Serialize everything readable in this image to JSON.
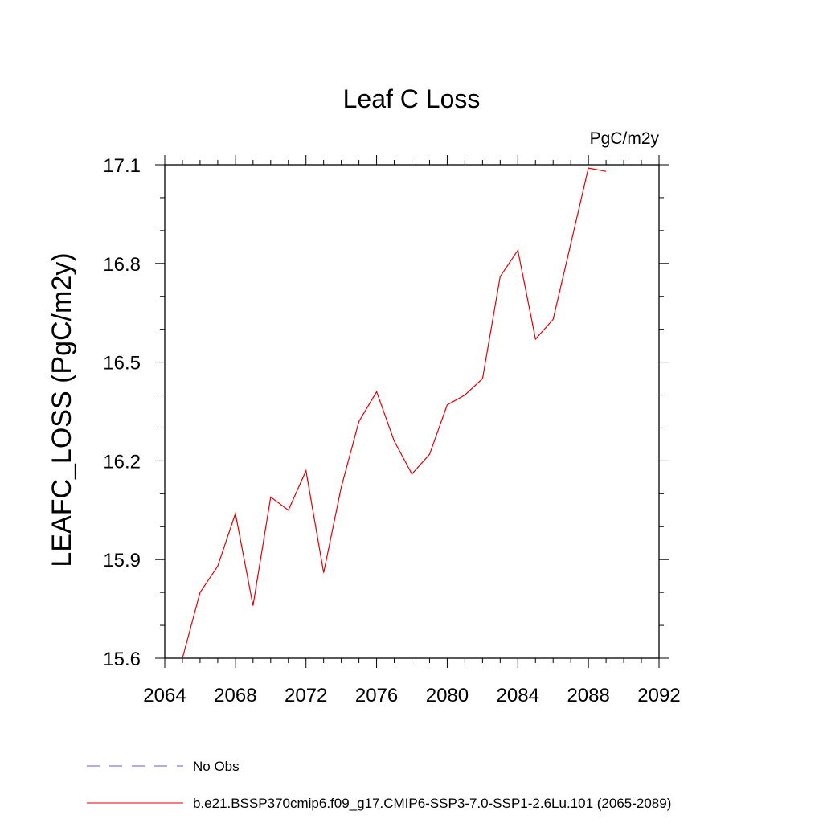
{
  "chart_data": {
    "type": "line",
    "title": "Leaf C Loss",
    "units_label": "PgC/m2y",
    "xlabel": "",
    "ylabel": "LEAFC_LOSS  (PgC/m2y)",
    "xlim": [
      2064,
      2092
    ],
    "ylim": [
      15.6,
      17.1
    ],
    "x_ticks": [
      2064,
      2068,
      2072,
      2076,
      2080,
      2084,
      2088,
      2092
    ],
    "x_tick_labels": [
      "2064",
      "2068",
      "2072",
      "2076",
      "2080",
      "2084",
      "2088",
      "2092"
    ],
    "y_ticks": [
      15.6,
      15.9,
      16.2,
      16.5,
      16.8,
      17.1
    ],
    "y_tick_labels": [
      "15.6",
      "15.9",
      "16.2",
      "16.5",
      "16.8",
      "17.1"
    ],
    "grid": false,
    "legend_position": "bottom",
    "series": [
      {
        "name": "No Obs",
        "color": "#6a5acd",
        "dash": "dashed",
        "x": [],
        "y": []
      },
      {
        "name": "b.e21.BSSP370cmip6.f09_g17.CMIP6-SSP3-7.0-SSP1-2.6Lu.101 (2065-2089)",
        "color": "#e0000a",
        "dash": "solid",
        "x": [
          2065,
          2066,
          2067,
          2068,
          2069,
          2070,
          2071,
          2072,
          2073,
          2074,
          2075,
          2076,
          2077,
          2078,
          2079,
          2080,
          2081,
          2082,
          2083,
          2084,
          2085,
          2086,
          2087,
          2088,
          2089
        ],
        "y": [
          15.6,
          15.8,
          15.88,
          16.04,
          15.76,
          16.09,
          16.05,
          16.17,
          15.86,
          16.12,
          16.32,
          16.41,
          16.26,
          16.16,
          16.22,
          16.37,
          16.4,
          16.45,
          16.76,
          16.84,
          16.57,
          16.63,
          16.86,
          17.09,
          17.08
        ]
      }
    ]
  }
}
